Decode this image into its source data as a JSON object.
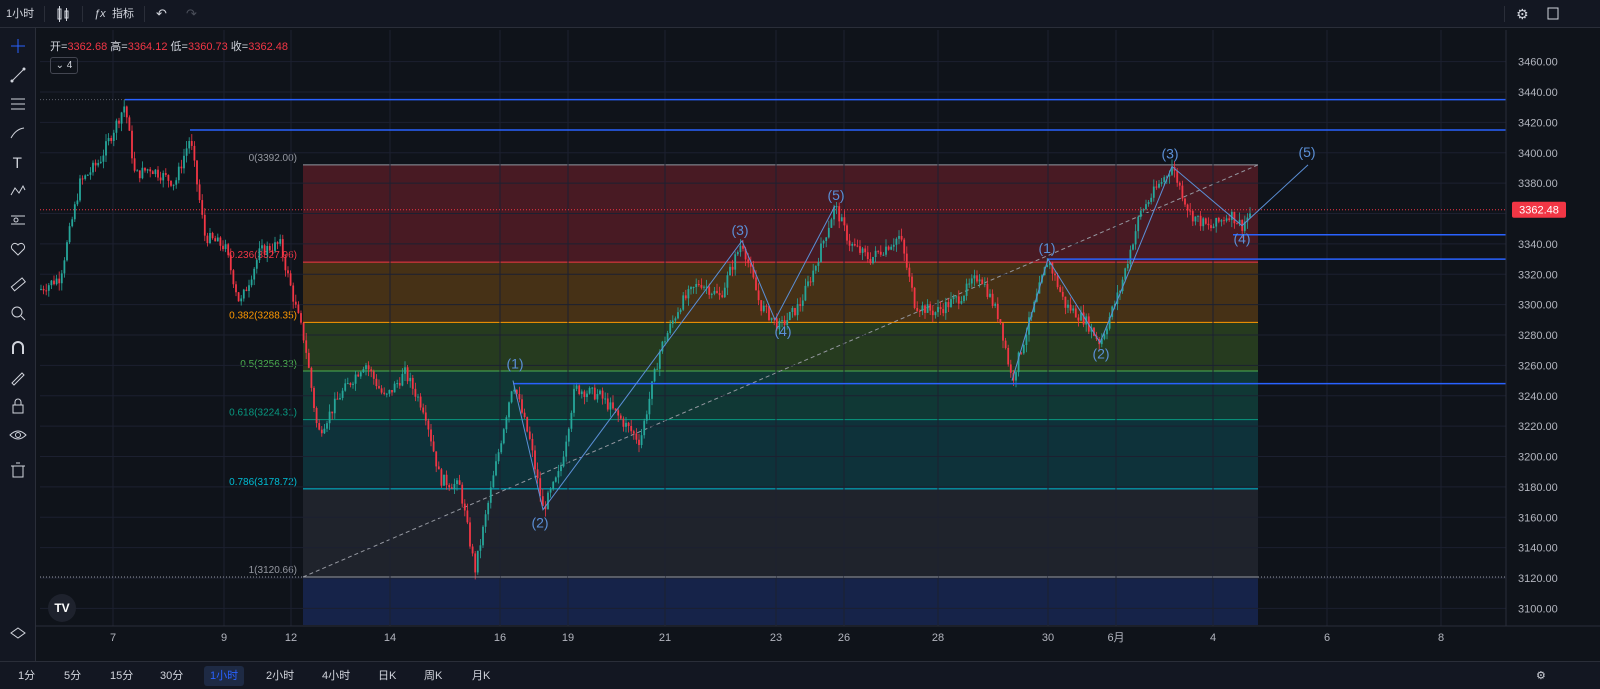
{
  "toolbar": {
    "interval": "1小时",
    "indicators_label": "指标"
  },
  "legend": {
    "open_label": "开=",
    "open_value": "3362.68",
    "high_label": "高=",
    "high_value": "3364.12",
    "low_label": "低=",
    "low_value": "3360.73",
    "close_label": "收=",
    "close_value": "3362.48",
    "indicator_count": "4"
  },
  "bottom_timeframes": [
    "1分",
    "5分",
    "15分",
    "30分",
    "1小时",
    "2小时",
    "4小时",
    "日K",
    "周K",
    "月K"
  ],
  "active_timeframe": "1小时",
  "colors": {
    "up": "#26a69a",
    "down": "#f23645",
    "line": "#2962ff",
    "bg": "#0f131a",
    "wave_label": "#5b8fd6"
  },
  "chart_data": {
    "type": "candlestick",
    "symbol_price": 3362.48,
    "y_ticks": [
      3460,
      3440,
      3420,
      3400,
      3380,
      3360,
      3340,
      3320,
      3300,
      3280,
      3260,
      3240,
      3220,
      3200,
      3180,
      3160,
      3140,
      3120,
      3100
    ],
    "y_tick_labels": [
      "3460.00",
      "3440.00",
      "3420.00",
      "3400.00",
      "3380.00",
      "3360.00",
      "3340.00",
      "3320.00",
      "3300.00",
      "3280.00",
      "3260.00",
      "3240.00",
      "3220.00",
      "3200.00",
      "3180.00",
      "3160.00",
      "3140.00",
      "3120.00",
      "3100.00"
    ],
    "ylim": [
      3095,
      3465
    ],
    "x_tick_labels": [
      "7",
      "9",
      "12",
      "14",
      "16",
      "19",
      "21",
      "23",
      "26",
      "28",
      "30",
      "6月",
      "4",
      "6",
      "8"
    ],
    "current_price_label": "3362.48",
    "fibonacci": {
      "levels": [
        {
          "ratio": "0",
          "price": 3392.0,
          "label": "0(3392.00)",
          "color": "#9598a1",
          "fill": "#5c1e27"
        },
        {
          "ratio": "0.236",
          "price": 3327.96,
          "label": "0.236(3327.96)",
          "color": "#f23645",
          "fill": "#5a3c16"
        },
        {
          "ratio": "0.382",
          "price": 3288.35,
          "label": "0.382(3288.35)",
          "color": "#ff9800",
          "fill": "#2f4a22"
        },
        {
          "ratio": "0.5",
          "price": 3256.33,
          "label": "0.5(3256.33)",
          "color": "#4caf50",
          "fill": "#11453f"
        },
        {
          "ratio": "0.618",
          "price": 3224.31,
          "label": "0.618(3224.31)",
          "color": "#089981",
          "fill": "#0f3e46"
        },
        {
          "ratio": "0.786",
          "price": 3178.72,
          "label": "0.786(3178.72)",
          "color": "#00bcd4",
          "fill": "#262a33"
        },
        {
          "ratio": "1",
          "price": 3120.66,
          "label": "1(3120.66)",
          "color": "#9598a1",
          "fill": "#1a2a5a"
        }
      ]
    },
    "horizontal_lines": [
      3435,
      3415,
      3346,
      3330,
      3248
    ],
    "wave_labels": [
      "(1)",
      "(2)",
      "(3)",
      "(4)",
      "(5)",
      "(1)",
      "(2)",
      "(3)",
      "(4)",
      "(5)"
    ]
  }
}
